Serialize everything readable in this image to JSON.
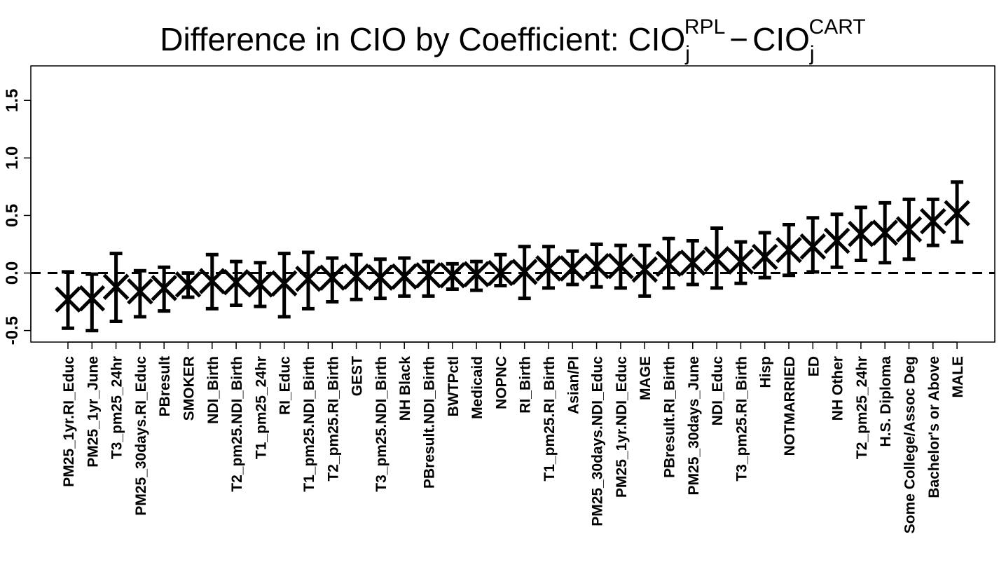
{
  "chart_data": {
    "type": "scatter",
    "title": {
      "prefix": "Difference in CIO by Coefficient: CIO",
      "sub1": "j",
      "sup1": "RPL",
      "minus": "−",
      "term2": "CIO",
      "sub2": "j",
      "sup2": "CART"
    },
    "xlabel": "",
    "ylabel": "",
    "ylim": [
      -0.6,
      1.8
    ],
    "yticks": [
      -0.5,
      0.0,
      0.5,
      1.0,
      1.5
    ],
    "ytick_labels": [
      "-0.5",
      "0.0",
      "0.5",
      "1.0",
      "1.5"
    ],
    "reference_line": {
      "y": 0,
      "style": "dashed"
    },
    "marker": "x",
    "error_bars": true,
    "categories": [
      "PM25_1yr.RI_Educ",
      "PM25_1yr_June",
      "T3_pm25_24hr",
      "PM25_30days.RI_Educ",
      "PBresult",
      "SMOKER",
      "NDI_Birth",
      "T2_pm25.NDI_Birth",
      "T1_pm25_24hr",
      "RI_Educ",
      "T1_pm25.NDI_Birth",
      "T2_pm25.RI_Birth",
      "GEST",
      "T3_pm25.NDI_Birth",
      "NH Black",
      "PBresult.NDI_Birth",
      "BWTPctl",
      "Medicaid",
      "NOPNC",
      "RI_Birth",
      "T1_pm25.RI_Birth",
      "Asian/PI",
      "PM25_30days.NDI_Educ",
      "PM25_1yr.NDI_Educ",
      "MAGE",
      "PBresult.RI_Birth",
      "PM25_30days_June",
      "NDI_Educ",
      "T3_pm25.RI_Birth",
      "Hisp",
      "NOTMARRIED",
      "ED",
      "NH Other",
      "T2_pm25_24hr",
      "H.S. Diploma",
      "Some College/Assoc Deg",
      "Bachelor's or Above",
      "MALE"
    ],
    "values": [
      -0.23,
      -0.22,
      -0.12,
      -0.16,
      -0.13,
      -0.1,
      -0.07,
      -0.08,
      -0.1,
      -0.09,
      -0.05,
      -0.04,
      -0.03,
      -0.04,
      -0.03,
      -0.02,
      -0.02,
      -0.01,
      0.0,
      0.01,
      0.04,
      0.04,
      0.06,
      0.06,
      0.03,
      0.08,
      0.09,
      0.12,
      0.1,
      0.14,
      0.2,
      0.23,
      0.28,
      0.34,
      0.35,
      0.38,
      0.45,
      0.52
    ],
    "lower": [
      -0.48,
      -0.5,
      -0.42,
      -0.38,
      -0.33,
      -0.21,
      -0.31,
      -0.28,
      -0.29,
      -0.38,
      -0.31,
      -0.25,
      -0.23,
      -0.22,
      -0.2,
      -0.2,
      -0.14,
      -0.15,
      -0.11,
      -0.22,
      -0.13,
      -0.1,
      -0.12,
      -0.13,
      -0.2,
      -0.13,
      -0.1,
      -0.13,
      -0.09,
      -0.04,
      -0.02,
      0.01,
      0.05,
      0.11,
      0.09,
      0.12,
      0.24,
      0.27
    ],
    "upper": [
      0.01,
      -0.01,
      0.17,
      0.02,
      0.05,
      0.0,
      0.16,
      0.1,
      0.09,
      0.17,
      0.18,
      0.13,
      0.16,
      0.12,
      0.13,
      0.1,
      0.08,
      0.1,
      0.16,
      0.23,
      0.23,
      0.19,
      0.25,
      0.24,
      0.24,
      0.3,
      0.28,
      0.39,
      0.27,
      0.35,
      0.42,
      0.48,
      0.51,
      0.57,
      0.61,
      0.64,
      0.64,
      0.79
    ],
    "colors": {
      "marks": "#000000",
      "background": "#ffffff"
    }
  }
}
